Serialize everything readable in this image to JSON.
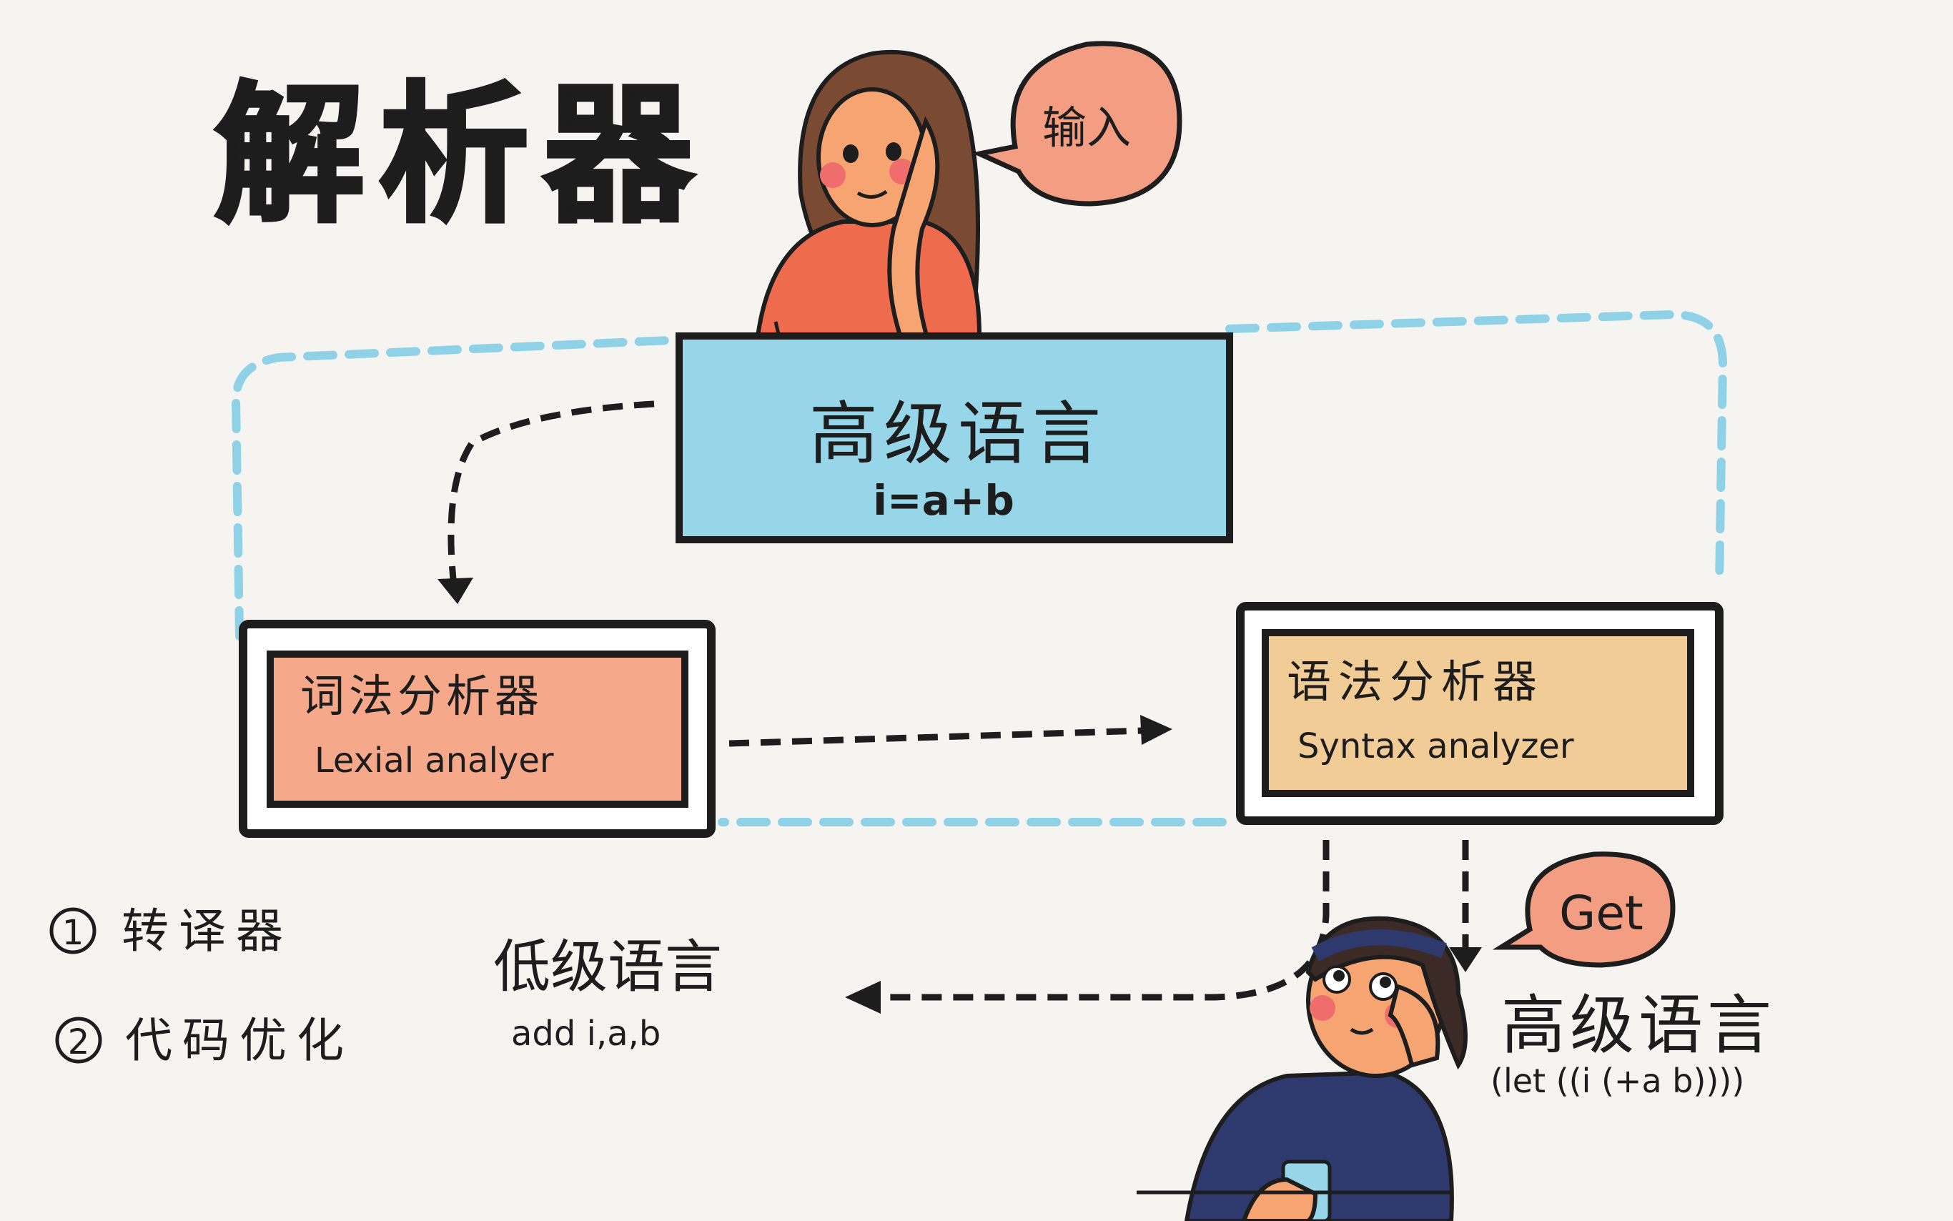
{
  "title": "解析器",
  "speech_input": "输入",
  "speech_get": "Get",
  "source_box": {
    "title": "高级语言",
    "code": "i=a+b"
  },
  "lexer_box": {
    "title": "词法分析器",
    "subtitle": "Lexial analyer"
  },
  "parser_box": {
    "title": "语法分析器",
    "subtitle": "Syntax analyzer"
  },
  "list": [
    {
      "marker": "1",
      "text": "转译器"
    },
    {
      "marker": "2",
      "text": "代码优化"
    }
  ],
  "low_level": {
    "title": "低级语言",
    "code": "add i,a,b"
  },
  "high_level_output": {
    "title": "高级语言",
    "code": "(let ((i (+a b))))"
  },
  "colors": {
    "background": "#f5f4f0",
    "title_blue": "#9fd8ea",
    "source_box": "#96d6e8",
    "lexer_box": "#f6a98a",
    "parser_box": "#f2cc96",
    "bubble": "#f39e82",
    "dashed_loop": "#8fd1e6",
    "ink": "#1d1d1d"
  }
}
